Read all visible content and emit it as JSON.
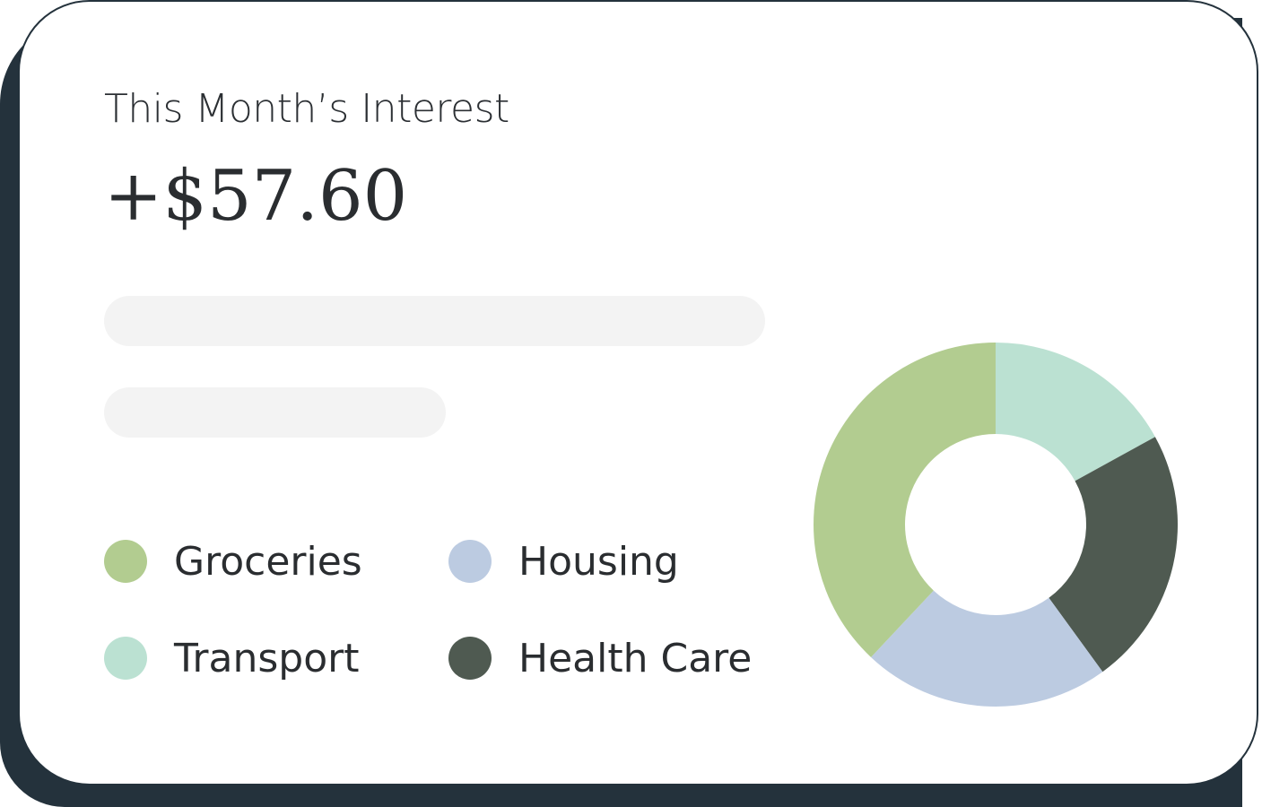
{
  "card": {
    "title": "This Month’s Interest",
    "amount": "+$57.60"
  },
  "legend": [
    {
      "label": "Groceries",
      "color": "#b2cc90"
    },
    {
      "label": "Housing",
      "color": "#bccbe1"
    },
    {
      "label": "Transport",
      "color": "#bbe1d2"
    },
    {
      "label": "Health Care",
      "color": "#4f5a51"
    }
  ],
  "chart_data": {
    "type": "pie",
    "categories": [
      "Transport",
      "Health Care",
      "Housing",
      "Groceries"
    ],
    "values": [
      17,
      23,
      22,
      38
    ],
    "colors": [
      "#bbe1d2",
      "#4f5a51",
      "#bccbe1",
      "#b2cc90"
    ],
    "title": ""
  }
}
